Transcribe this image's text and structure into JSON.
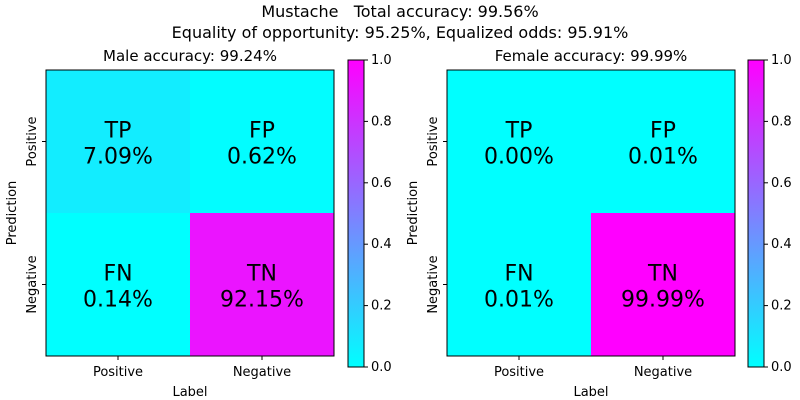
{
  "figure": {
    "title_line1": "Mustache   Total accuracy: 99.56%",
    "title_line2": "Equality of opportunity: 95.25%, Equalized odds: 95.91%"
  },
  "chart_data": [
    {
      "type": "heatmap",
      "title": "Male accuracy: 99.24%",
      "xlabel": "Label",
      "ylabel": "Prediction",
      "x_categories": [
        "Positive",
        "Negative"
      ],
      "y_categories": [
        "Positive",
        "Negative"
      ],
      "cells": [
        [
          {
            "label": "TP",
            "value": "7.09%",
            "v": 0.0709
          },
          {
            "label": "FP",
            "value": "0.62%",
            "v": 0.0062
          }
        ],
        [
          {
            "label": "FN",
            "value": "0.14%",
            "v": 0.0014
          },
          {
            "label": "TN",
            "value": "92.15%",
            "v": 0.9215
          }
        ]
      ],
      "colorbar": {
        "min": 0.0,
        "max": 1.0,
        "ticks": [
          "0.0",
          "0.2",
          "0.4",
          "0.6",
          "0.8",
          "1.0"
        ],
        "colormap": "cool"
      }
    },
    {
      "type": "heatmap",
      "title": "Female accuracy: 99.99%",
      "xlabel": "Label",
      "ylabel": "Prediction",
      "x_categories": [
        "Positive",
        "Negative"
      ],
      "y_categories": [
        "Positive",
        "Negative"
      ],
      "cells": [
        [
          {
            "label": "TP",
            "value": "0.00%",
            "v": 0.0
          },
          {
            "label": "FP",
            "value": "0.01%",
            "v": 0.0001
          }
        ],
        [
          {
            "label": "FN",
            "value": "0.01%",
            "v": 0.0001
          },
          {
            "label": "TN",
            "value": "99.99%",
            "v": 0.9999
          }
        ]
      ],
      "colorbar": {
        "min": 0.0,
        "max": 1.0,
        "ticks": [
          "0.0",
          "0.2",
          "0.4",
          "0.6",
          "0.8",
          "1.0"
        ],
        "colormap": "cool"
      }
    }
  ]
}
